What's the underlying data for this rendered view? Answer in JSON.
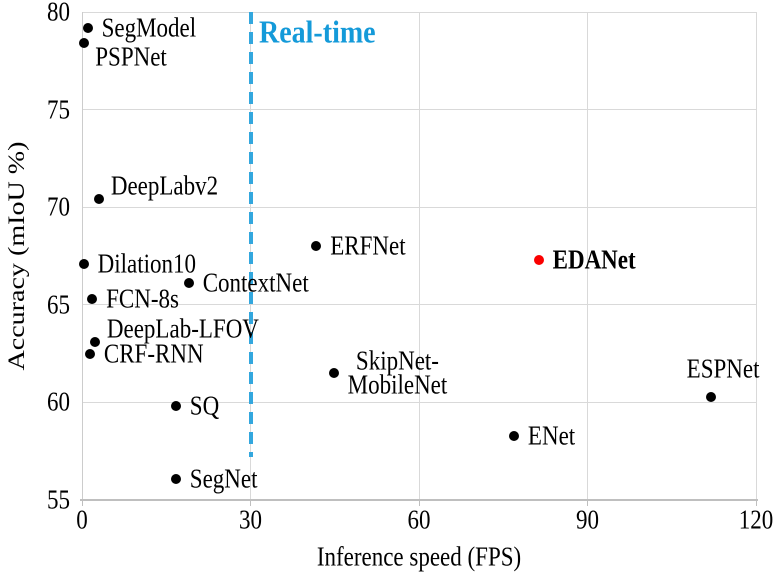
{
  "chart_data": {
    "type": "scatter",
    "title": "",
    "xlabel": "Inference speed (FPS)",
    "ylabel": "Accuracy (mIoU %)",
    "xlim": [
      0,
      120
    ],
    "ylim": [
      55,
      80
    ],
    "xticks": [
      0,
      30,
      60,
      90,
      120
    ],
    "yticks": [
      55,
      60,
      65,
      70,
      75,
      80
    ],
    "grid": true,
    "legend": "none",
    "colors": {
      "default_point": "#000000",
      "highlight_point": "#fa0000",
      "threshold_line": "#33a7de",
      "threshold_label": "#149ad9",
      "gridline": "#d9d9d9"
    },
    "threshold_line": {
      "x": 30,
      "y_bottom": 57.2,
      "style": "dashed",
      "label": "Real-time"
    },
    "points": [
      {
        "name": "SegModel",
        "x": 1.0,
        "y": 79.2,
        "label": "SegModel",
        "label_pos": "right"
      },
      {
        "name": "PSPNet",
        "x": 0.4,
        "y": 78.4,
        "label": "PSPNet",
        "label_pos": "below-right"
      },
      {
        "name": "DeepLabv2",
        "x": 3.0,
        "y": 70.4,
        "label": "DeepLabv2",
        "label_pos": "above-right"
      },
      {
        "name": "Dilation10",
        "x": 0.3,
        "y": 67.1,
        "label": "Dilation10",
        "label_pos": "right"
      },
      {
        "name": "ContextNet",
        "x": 19.0,
        "y": 66.1,
        "label": "ContextNet",
        "label_pos": "right"
      },
      {
        "name": "FCN-8s",
        "x": 1.8,
        "y": 65.3,
        "label": "FCN-8s",
        "label_pos": "right"
      },
      {
        "name": "DeepLab-LFOV",
        "x": 2.3,
        "y": 63.1,
        "label": "DeepLab-LFOV",
        "label_pos": "above-right"
      },
      {
        "name": "CRF-RNN",
        "x": 1.4,
        "y": 62.5,
        "label": "CRF-RNN",
        "label_pos": "right"
      },
      {
        "name": "ERFNet",
        "x": 41.7,
        "y": 68.0,
        "label": "ERFNet",
        "label_pos": "right"
      },
      {
        "name": "SkipNet-MobileNet",
        "x": 44.8,
        "y": 61.5,
        "label": "SkipNet-\nMobileNet",
        "label_pos": "right"
      },
      {
        "name": "SQ",
        "x": 16.7,
        "y": 59.8,
        "label": "SQ",
        "label_pos": "right"
      },
      {
        "name": "SegNet",
        "x": 16.7,
        "y": 56.1,
        "label": "SegNet",
        "label_pos": "right"
      },
      {
        "name": "EDANet",
        "x": 81.3,
        "y": 67.3,
        "label": "EDANet",
        "label_pos": "right",
        "highlight": true,
        "bold": true
      },
      {
        "name": "ENet",
        "x": 76.9,
        "y": 58.3,
        "label": "ENet",
        "label_pos": "right"
      },
      {
        "name": "ESPNet",
        "x": 112.0,
        "y": 60.3,
        "label": "ESPNet",
        "label_pos": "above"
      }
    ]
  }
}
